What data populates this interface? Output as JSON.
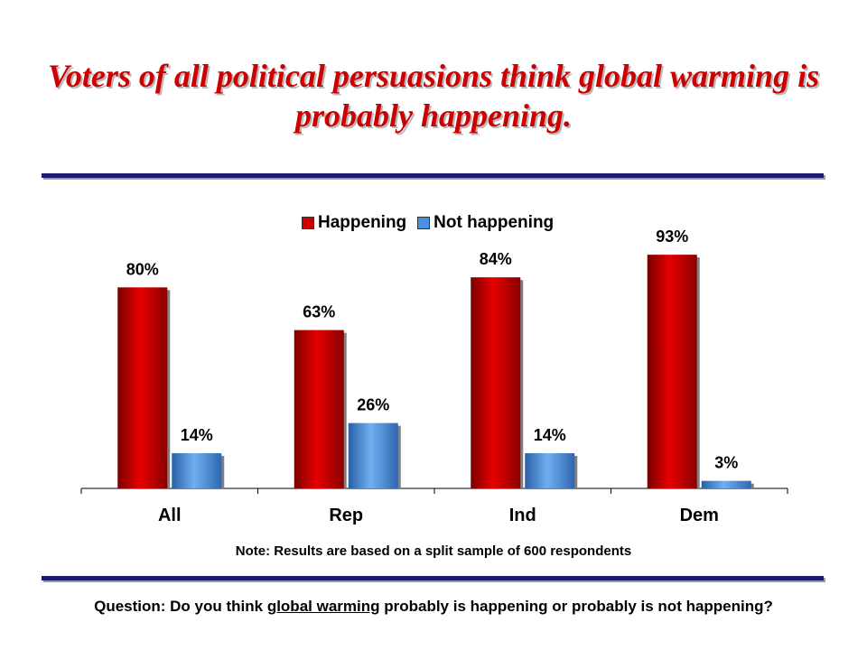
{
  "title": "Voters of all political persuasions think global warming is probably happening.",
  "note": "Note: Results are based on a split sample of 600 respondents",
  "question": {
    "prefix": "Question: Do you think ",
    "underlined": "global warming",
    "suffix": " probably is happening or probably is not happening?"
  },
  "colors": {
    "title": "#cc0000",
    "rule": "#1a1a6e",
    "happening": "#cc0000",
    "not_happening": "#4a90e2"
  },
  "chart_data": {
    "type": "bar",
    "categories": [
      "All",
      "Rep",
      "Ind",
      "Dem"
    ],
    "series": [
      {
        "name": "Happening",
        "values": [
          80,
          63,
          84,
          93
        ],
        "labels": [
          "80%",
          "63%",
          "84%",
          "93%"
        ],
        "color": "#cc0000"
      },
      {
        "name": "Not happening",
        "values": [
          14,
          26,
          14,
          3
        ],
        "labels": [
          "14%",
          "26%",
          "14%",
          "3%"
        ],
        "color": "#4a90e2"
      }
    ],
    "title": "",
    "xlabel": "",
    "ylabel": "",
    "ylim": [
      0,
      100
    ],
    "grid": false,
    "legend": "top"
  }
}
